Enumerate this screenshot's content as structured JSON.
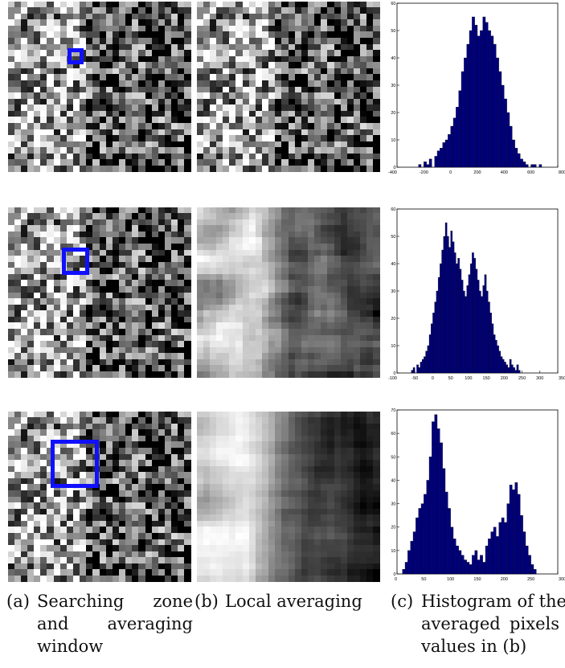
{
  "figure": {
    "rows": [
      {
        "window_size": 3,
        "blur_radius": 0
      },
      {
        "window_size": 5,
        "blur_radius": 2
      },
      {
        "window_size": 9,
        "blur_radius": 4
      }
    ]
  },
  "captions": {
    "a": {
      "label": "(a)",
      "lines": [
        "Searching zone",
        "and averaging",
        "window"
      ]
    },
    "b": {
      "label": "(b)",
      "lines": [
        "Local averaging"
      ]
    },
    "c": {
      "label": "(c)",
      "lines": [
        "Histogram of the",
        "averaged pixels",
        "values in (b)"
      ]
    }
  },
  "colors": {
    "bar_fill": "#000080",
    "window": "#1010ff"
  },
  "chart_data": [
    {
      "type": "bar",
      "title": "",
      "xlabel": "",
      "ylabel": "",
      "xlim": [
        -400,
        800
      ],
      "ylim": [
        0,
        60
      ],
      "xticks": [
        -400,
        -200,
        0,
        200,
        400,
        600,
        800
      ],
      "yticks": [
        0,
        10,
        20,
        30,
        40,
        50,
        60
      ],
      "bin_width": 20,
      "bin_start": -240,
      "values": [
        1,
        0,
        2,
        1,
        3,
        0,
        4,
        6,
        7,
        9,
        10,
        12,
        15,
        18,
        22,
        28,
        35,
        40,
        45,
        50,
        55,
        52,
        48,
        50,
        55,
        53,
        50,
        48,
        45,
        40,
        35,
        30,
        25,
        20,
        15,
        10,
        7,
        5,
        3,
        2,
        1,
        0,
        1,
        1,
        0,
        1
      ]
    },
    {
      "type": "bar",
      "title": "",
      "xlabel": "",
      "ylabel": "",
      "xlim": [
        -100,
        350
      ],
      "ylim": [
        0,
        60
      ],
      "xticks": [
        -100,
        -50,
        0,
        50,
        100,
        150,
        200,
        250,
        300,
        350
      ],
      "yticks": [
        0,
        10,
        20,
        30,
        40,
        50,
        60
      ],
      "bin_width": 5,
      "bin_start": -60,
      "values": [
        1,
        2,
        0,
        3,
        2,
        4,
        5,
        6,
        8,
        10,
        14,
        18,
        22,
        26,
        30,
        35,
        40,
        45,
        50,
        55,
        50,
        46,
        52,
        48,
        44,
        40,
        42,
        38,
        34,
        30,
        28,
        32,
        36,
        40,
        44,
        42,
        38,
        34,
        30,
        28,
        32,
        36,
        30,
        26,
        22,
        18,
        14,
        12,
        10,
        8,
        6,
        5,
        4,
        3,
        2,
        5,
        3,
        2,
        1,
        3,
        1
      ]
    },
    {
      "type": "bar",
      "title": "",
      "xlabel": "",
      "ylabel": "",
      "xlim": [
        0,
        300
      ],
      "ylim": [
        0,
        70
      ],
      "xticks": [
        0,
        50,
        100,
        150,
        200,
        250,
        300
      ],
      "yticks": [
        0,
        10,
        20,
        30,
        40,
        50,
        60,
        70
      ],
      "bin_width": 5,
      "bin_start": 10,
      "values": [
        2,
        5,
        10,
        14,
        18,
        24,
        28,
        30,
        34,
        40,
        50,
        65,
        68,
        62,
        56,
        45,
        35,
        28,
        20,
        15,
        12,
        10,
        8,
        6,
        5,
        4,
        8,
        10,
        6,
        8,
        5,
        12,
        15,
        18,
        20,
        16,
        22,
        24,
        22,
        30,
        38,
        36,
        39,
        34,
        25,
        18,
        12,
        8,
        4,
        2
      ]
    }
  ]
}
